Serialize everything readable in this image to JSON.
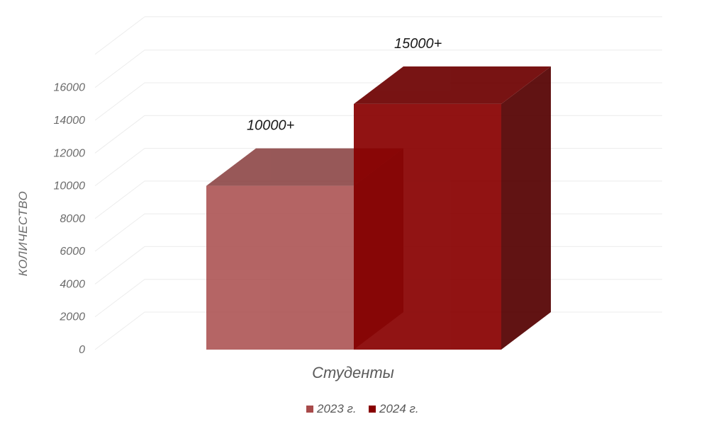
{
  "chart_data": {
    "type": "bar",
    "categories": [
      "Студенты"
    ],
    "series": [
      {
        "name": "2023 г.",
        "values": [
          10000
        ],
        "label": "10000+",
        "color": "#a84a4a"
      },
      {
        "name": "2024 г.",
        "values": [
          15000
        ],
        "label": "15000+",
        "color": "#880000"
      }
    ],
    "title": "",
    "xlabel": "",
    "ylabel": "КОЛИЧЕСТВО",
    "ylim": [
      0,
      16000
    ],
    "yticks": [
      0,
      2000,
      4000,
      6000,
      8000,
      10000,
      12000,
      14000,
      16000
    ],
    "yticks_labels": [
      "0",
      "2000",
      "4000",
      "6000",
      "8000",
      "10000",
      "12000",
      "14000",
      "16000"
    ],
    "grid": true,
    "legend": "bottom",
    "style": "3d"
  }
}
